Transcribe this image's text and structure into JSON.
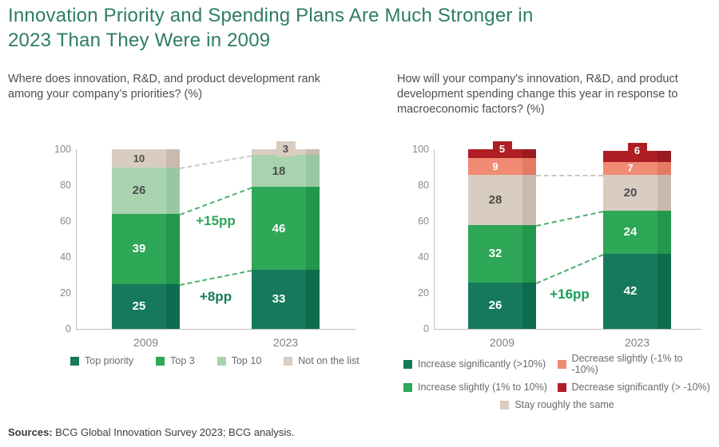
{
  "title_lines": [
    "Innovation Priority and Spending Plans Are Much Stronger in",
    "2023 Than They Were in 2009"
  ],
  "title_color": "#2E7E5E",
  "sources": {
    "label": "Sources:",
    "text": " BCG Global Innovation Survey 2023; BCG analysis."
  },
  "chart_data": [
    {
      "type": "bar",
      "stacked": true,
      "question_lines": [
        "Where does innovation, R&D, and product development rank",
        "among your company’s priorities? (%)"
      ],
      "categories": [
        "2009",
        "2023"
      ],
      "series": [
        {
          "name": "Top priority",
          "color": "#17795B",
          "side": "#0E6C4E",
          "label_color": "#ffffff",
          "values": [
            25,
            33
          ]
        },
        {
          "name": "Top 3",
          "color": "#2EA757",
          "side": "#23974B",
          "label_color": "#ffffff",
          "values": [
            39,
            46
          ]
        },
        {
          "name": "Top 10",
          "color": "#A8D3AE",
          "side": "#98C8A1",
          "label_color": "#4d4d4d",
          "values": [
            26,
            18
          ]
        },
        {
          "name": "Not on the list",
          "color": "#D9CCC1",
          "side": "#C9BAAD",
          "label_color": "#4d4d4d",
          "values": [
            10,
            3
          ]
        }
      ],
      "ylim": [
        0,
        100
      ],
      "yticks": [
        0,
        20,
        40,
        60,
        80,
        100
      ],
      "grid": false,
      "legend_position": "bottom",
      "legend_layout": [
        [
          0,
          1,
          2,
          3
        ]
      ],
      "connectors": [
        {
          "from": 90,
          "to": 97,
          "color": "#D2C6B9"
        },
        {
          "from": 64,
          "to": 79,
          "color": "#4BB06C"
        },
        {
          "from": 25,
          "to": 33,
          "color": "#4BB06C"
        }
      ],
      "annotations": [
        {
          "text": "+15pp",
          "level": 60,
          "color": "#2EA757"
        },
        {
          "text": "+8pp",
          "level": 18,
          "color": "#17795B"
        }
      ]
    },
    {
      "type": "bar",
      "stacked": true,
      "question_lines": [
        "How will your company's innovation, R&D, and product",
        "development spending change this year in response to",
        "macroeconomic factors? (%)"
      ],
      "categories": [
        "2009",
        "2023"
      ],
      "series": [
        {
          "name": "Increase significantly (>10%)",
          "color": "#17795B",
          "side": "#0E6C4E",
          "label_color": "#ffffff",
          "values": [
            26,
            42
          ]
        },
        {
          "name": "Increase slightly (1% to 10%)",
          "color": "#2EA757",
          "side": "#23974B",
          "label_color": "#ffffff",
          "values": [
            32,
            24
          ]
        },
        {
          "name": "Stay roughly the same",
          "color": "#D9CCC1",
          "side": "#C9BAAD",
          "label_color": "#4d4d4d",
          "values": [
            28,
            20
          ]
        },
        {
          "name": "Decrease slightly (-1% to -10%)",
          "color": "#F08B73",
          "side": "#E47A62",
          "label_color": "#ffffff",
          "values": [
            9,
            7
          ]
        },
        {
          "name": "Decrease significantly (> -10%)",
          "color": "#AE1E24",
          "side": "#991A1F",
          "label_color": "#ffffff",
          "values": [
            5,
            6
          ]
        }
      ],
      "ylim": [
        0,
        100
      ],
      "yticks": [
        0,
        20,
        40,
        60,
        80,
        100
      ],
      "grid": false,
      "legend_position": "bottom",
      "legend_layout": [
        [
          0,
          3
        ],
        [
          1,
          4
        ],
        [
          2
        ]
      ],
      "connectors": [
        {
          "from": 86,
          "to": 86,
          "color": "#D2C6B9"
        },
        {
          "from": 58,
          "to": 66,
          "color": "#4BB06C"
        },
        {
          "from": 26,
          "to": 42,
          "color": "#4BB06C"
        }
      ],
      "annotations": [
        {
          "text": "+16pp",
          "level": 19,
          "color": "#189C59"
        }
      ]
    }
  ]
}
